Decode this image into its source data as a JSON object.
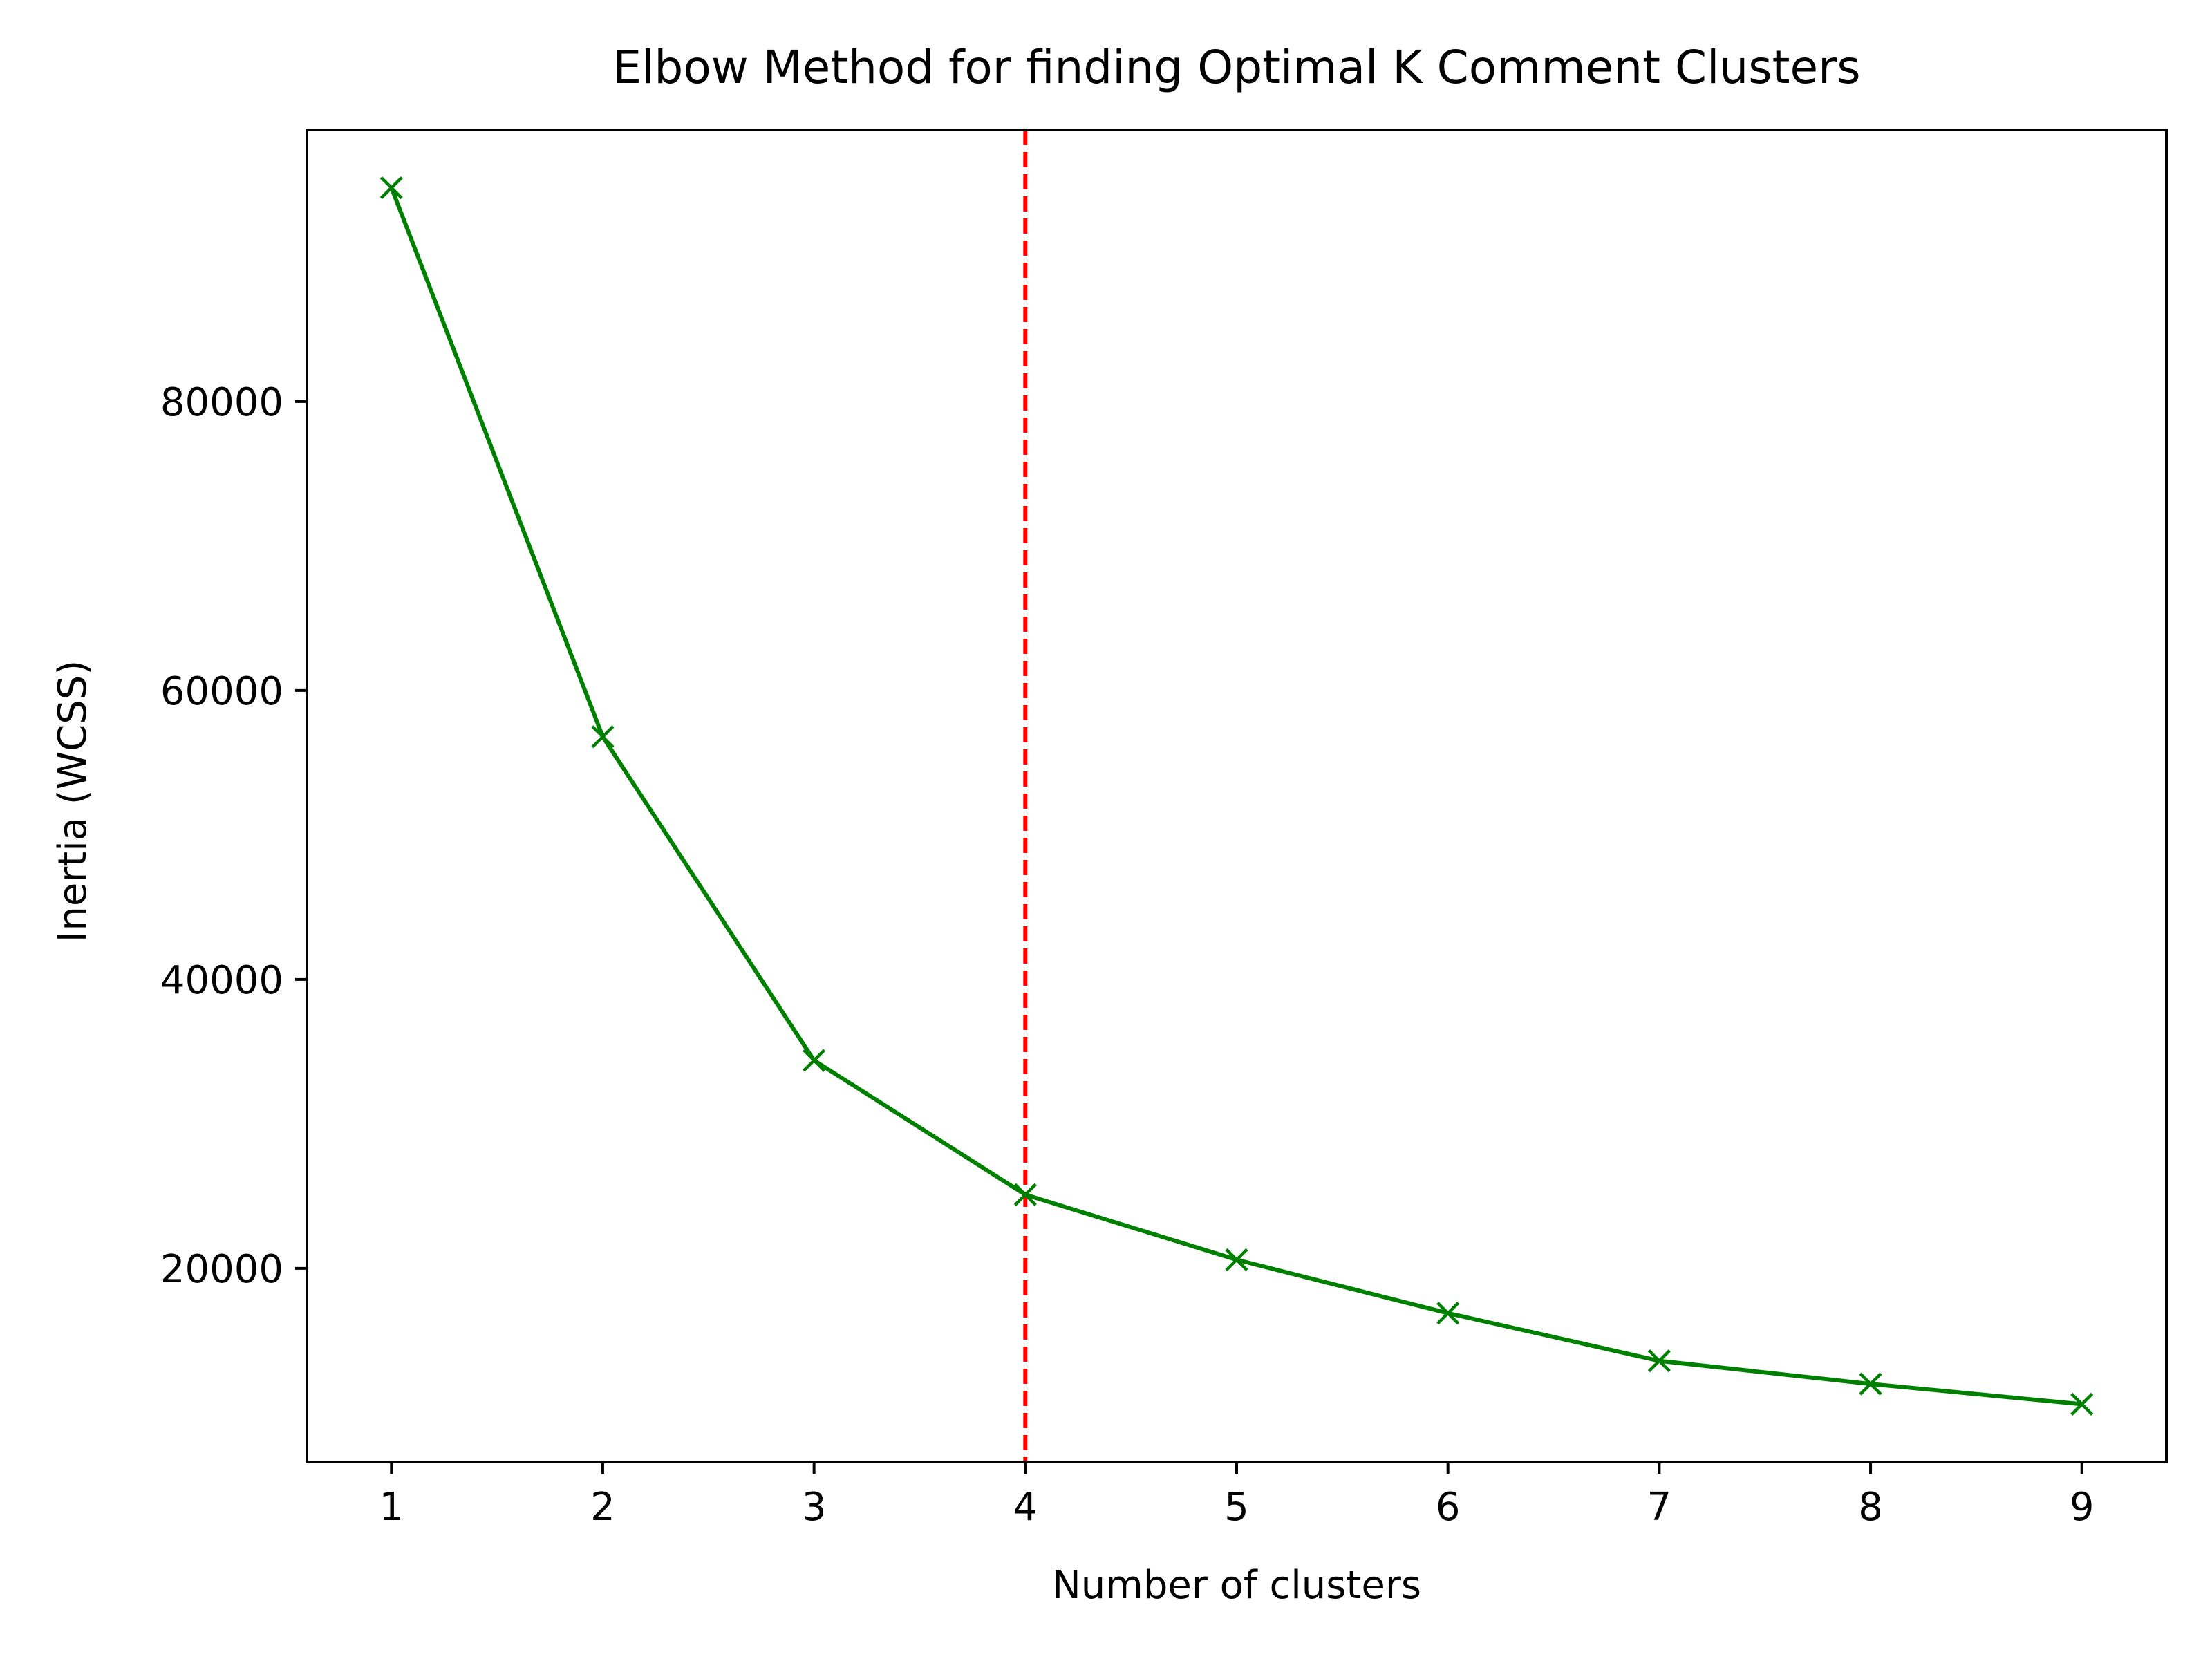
{
  "chart_data": {
    "type": "line",
    "title": "Elbow Method for finding Optimal K Comment Clusters",
    "xlabel": "Number of clusters",
    "ylabel": "Inertia (WCSS)",
    "x": [
      1,
      2,
      3,
      4,
      5,
      6,
      7,
      8,
      9
    ],
    "series": [
      {
        "values": [
          94800,
          56800,
          34400,
          25100,
          20600,
          16900,
          13600,
          12000,
          10600
        ],
        "color": "#008000",
        "marker": "x"
      }
    ],
    "xlim": [
      0.6,
      9.4
    ],
    "ylim": [
      6600,
      98800
    ],
    "xticks": [
      1,
      2,
      3,
      4,
      5,
      6,
      7,
      8,
      9
    ],
    "yticks": [
      20000,
      40000,
      60000,
      80000
    ],
    "grid": false,
    "reference_line": {
      "orientation": "vertical",
      "x": 4,
      "color": "#ff0000",
      "style": "dashed"
    }
  }
}
